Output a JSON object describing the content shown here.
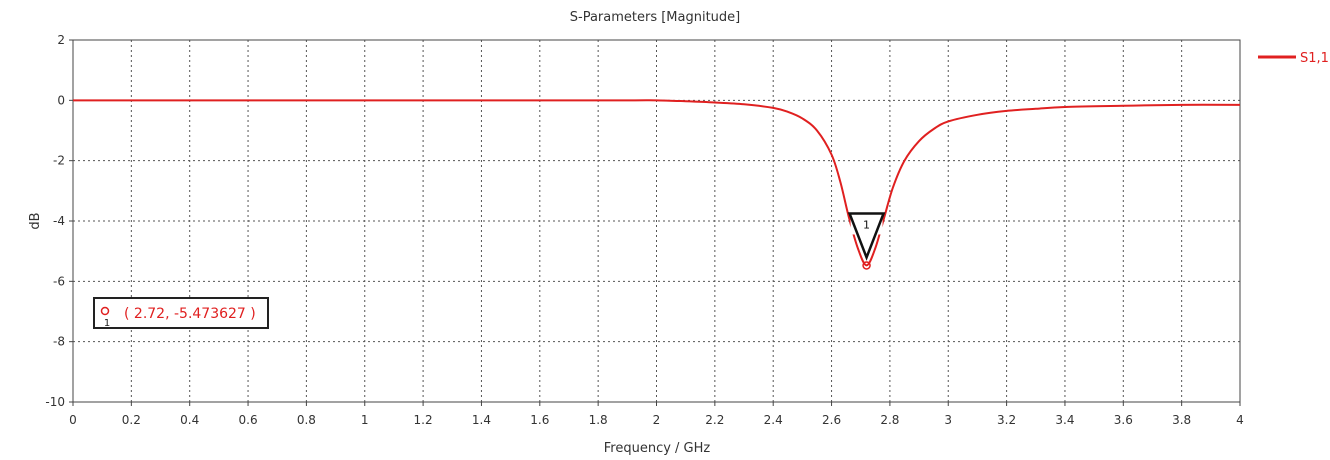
{
  "chart_data": {
    "type": "line",
    "title": "S-Parameters [Magnitude]",
    "xlabel": "Frequency / GHz",
    "ylabel": "dB",
    "xlim": [
      0,
      4
    ],
    "ylim": [
      -10,
      2
    ],
    "grid": true,
    "legend_position": "top-right",
    "x_ticks": [
      "0",
      "0.2",
      "0.4",
      "0.6",
      "0.8",
      "1",
      "1.2",
      "1.4",
      "1.6",
      "1.8",
      "2",
      "2.2",
      "2.4",
      "2.6",
      "2.8",
      "3",
      "3.2",
      "3.4",
      "3.6",
      "3.8",
      "4"
    ],
    "y_ticks": [
      "2",
      "0",
      "-2",
      "-4",
      "-6",
      "-8",
      "-10"
    ],
    "series": [
      {
        "name": "S1,1",
        "color": "#e02020",
        "x": [
          0,
          0.5,
          1.0,
          1.5,
          1.9,
          2.0,
          2.1,
          2.2,
          2.3,
          2.4,
          2.45,
          2.5,
          2.55,
          2.6,
          2.63,
          2.66,
          2.69,
          2.72,
          2.75,
          2.78,
          2.81,
          2.85,
          2.9,
          2.95,
          3.0,
          3.1,
          3.2,
          3.3,
          3.4,
          3.6,
          3.8,
          4.0
        ],
        "values": [
          0.0,
          0.0,
          0.0,
          0.0,
          0.0,
          0.0,
          -0.03,
          -0.07,
          -0.13,
          -0.25,
          -0.38,
          -0.6,
          -1.0,
          -1.8,
          -2.7,
          -3.9,
          -4.9,
          -5.47,
          -4.9,
          -3.9,
          -2.9,
          -2.0,
          -1.35,
          -0.95,
          -0.7,
          -0.48,
          -0.35,
          -0.28,
          -0.22,
          -0.18,
          -0.15,
          -0.15
        ]
      }
    ],
    "marker": {
      "id": "1",
      "x": 2.72,
      "y": -5.473627,
      "label": "( 2.72, -5.473627 )"
    }
  }
}
